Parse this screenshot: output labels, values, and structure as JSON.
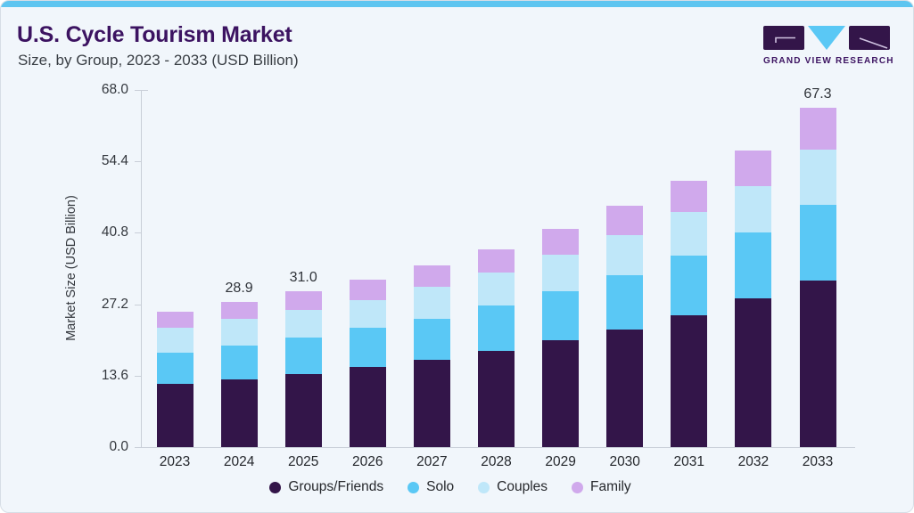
{
  "header": {
    "title": "U.S. Cycle Tourism Market",
    "subtitle": "Size, by Group, 2023 - 2033 (USD Billion)"
  },
  "logo": {
    "text": "GRAND VIEW RESEARCH",
    "mark_dark_color": "#331549",
    "mark_blue_color": "#5ac8f5"
  },
  "chart_data": {
    "type": "bar",
    "stacked": true,
    "title": "U.S. Cycle Tourism Market Size, by Group, 2023 - 2033 (USD Billion)",
    "categories": [
      "2023",
      "2024",
      "2025",
      "2026",
      "2027",
      "2028",
      "2029",
      "2030",
      "2031",
      "2032",
      "2033"
    ],
    "series": [
      {
        "name": "Groups/Friends",
        "color": "#331549",
        "values": [
          12.5,
          13.4,
          14.5,
          15.9,
          17.3,
          19.1,
          21.2,
          23.4,
          26.2,
          29.6,
          33.1
        ]
      },
      {
        "name": "Solo",
        "color": "#5ac8f5",
        "values": [
          6.3,
          6.8,
          7.3,
          7.7,
          8.2,
          9.0,
          9.8,
          10.7,
          11.8,
          13.0,
          15.0
        ]
      },
      {
        "name": "Couples",
        "color": "#bfe7f9",
        "values": [
          4.8,
          5.2,
          5.4,
          5.6,
          6.3,
          6.6,
          7.2,
          8.0,
          8.7,
          9.1,
          10.9
        ]
      },
      {
        "name": "Family",
        "color": "#d0a9ec",
        "values": [
          3.3,
          3.5,
          3.8,
          4.1,
          4.3,
          4.6,
          5.1,
          5.7,
          6.2,
          7.2,
          8.3
        ]
      }
    ],
    "total_labels": [
      {
        "category": "2024",
        "label": "28.9"
      },
      {
        "category": "2025",
        "label": "31.0"
      },
      {
        "category": "2033",
        "label": "67.3"
      }
    ],
    "ylabel": "Market Size (USD Billion)",
    "yticks": [
      "0.0",
      "13.6",
      "27.2",
      "40.8",
      "54.4",
      "68.0"
    ],
    "ylim": [
      0,
      68
    ],
    "grid": false,
    "legend_position": "bottom"
  },
  "colors": {
    "card_background": "#f1f6fb",
    "top_bar": "#5ec5f0",
    "title_text": "#3c1361",
    "axis_line": "#c9cfd8"
  }
}
